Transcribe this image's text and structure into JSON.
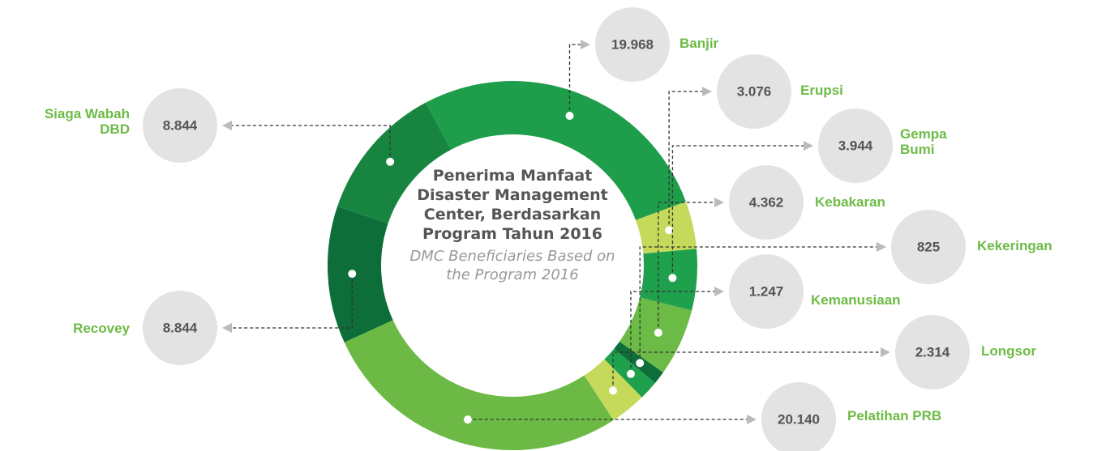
{
  "chart_data": {
    "type": "donut",
    "title": "Penerima Manfaat Disaster Management Center, Berdasarkan Program Tahun 2016",
    "subtitle": "DMC Beneficiaries  Based on the Program 2016",
    "categories": [
      "Banjir",
      "Erupsi",
      "Gempa Bumi",
      "Kebakaran",
      "Kekeringan",
      "Kemanusiaan",
      "Longsor",
      "Pelatihan PRB",
      "Recovey",
      "Siaga Wabah DBD"
    ],
    "values": [
      19968,
      3076,
      3944,
      4362,
      825,
      1247,
      2314,
      20140,
      8844,
      8844
    ],
    "value_labels": [
      "19.968",
      "3.076",
      "3.944",
      "4.362",
      "825",
      "1.247",
      "2.314",
      "20.140",
      "8.844",
      "8.844"
    ],
    "colors": [
      "#1e9e4a",
      "#c5d95a",
      "#1fa04c",
      "#6bbb46",
      "#0d6e3a",
      "#1fa04c",
      "#c5d95a",
      "#6cba45",
      "#0d6e3a",
      "#17853f"
    ]
  }
}
